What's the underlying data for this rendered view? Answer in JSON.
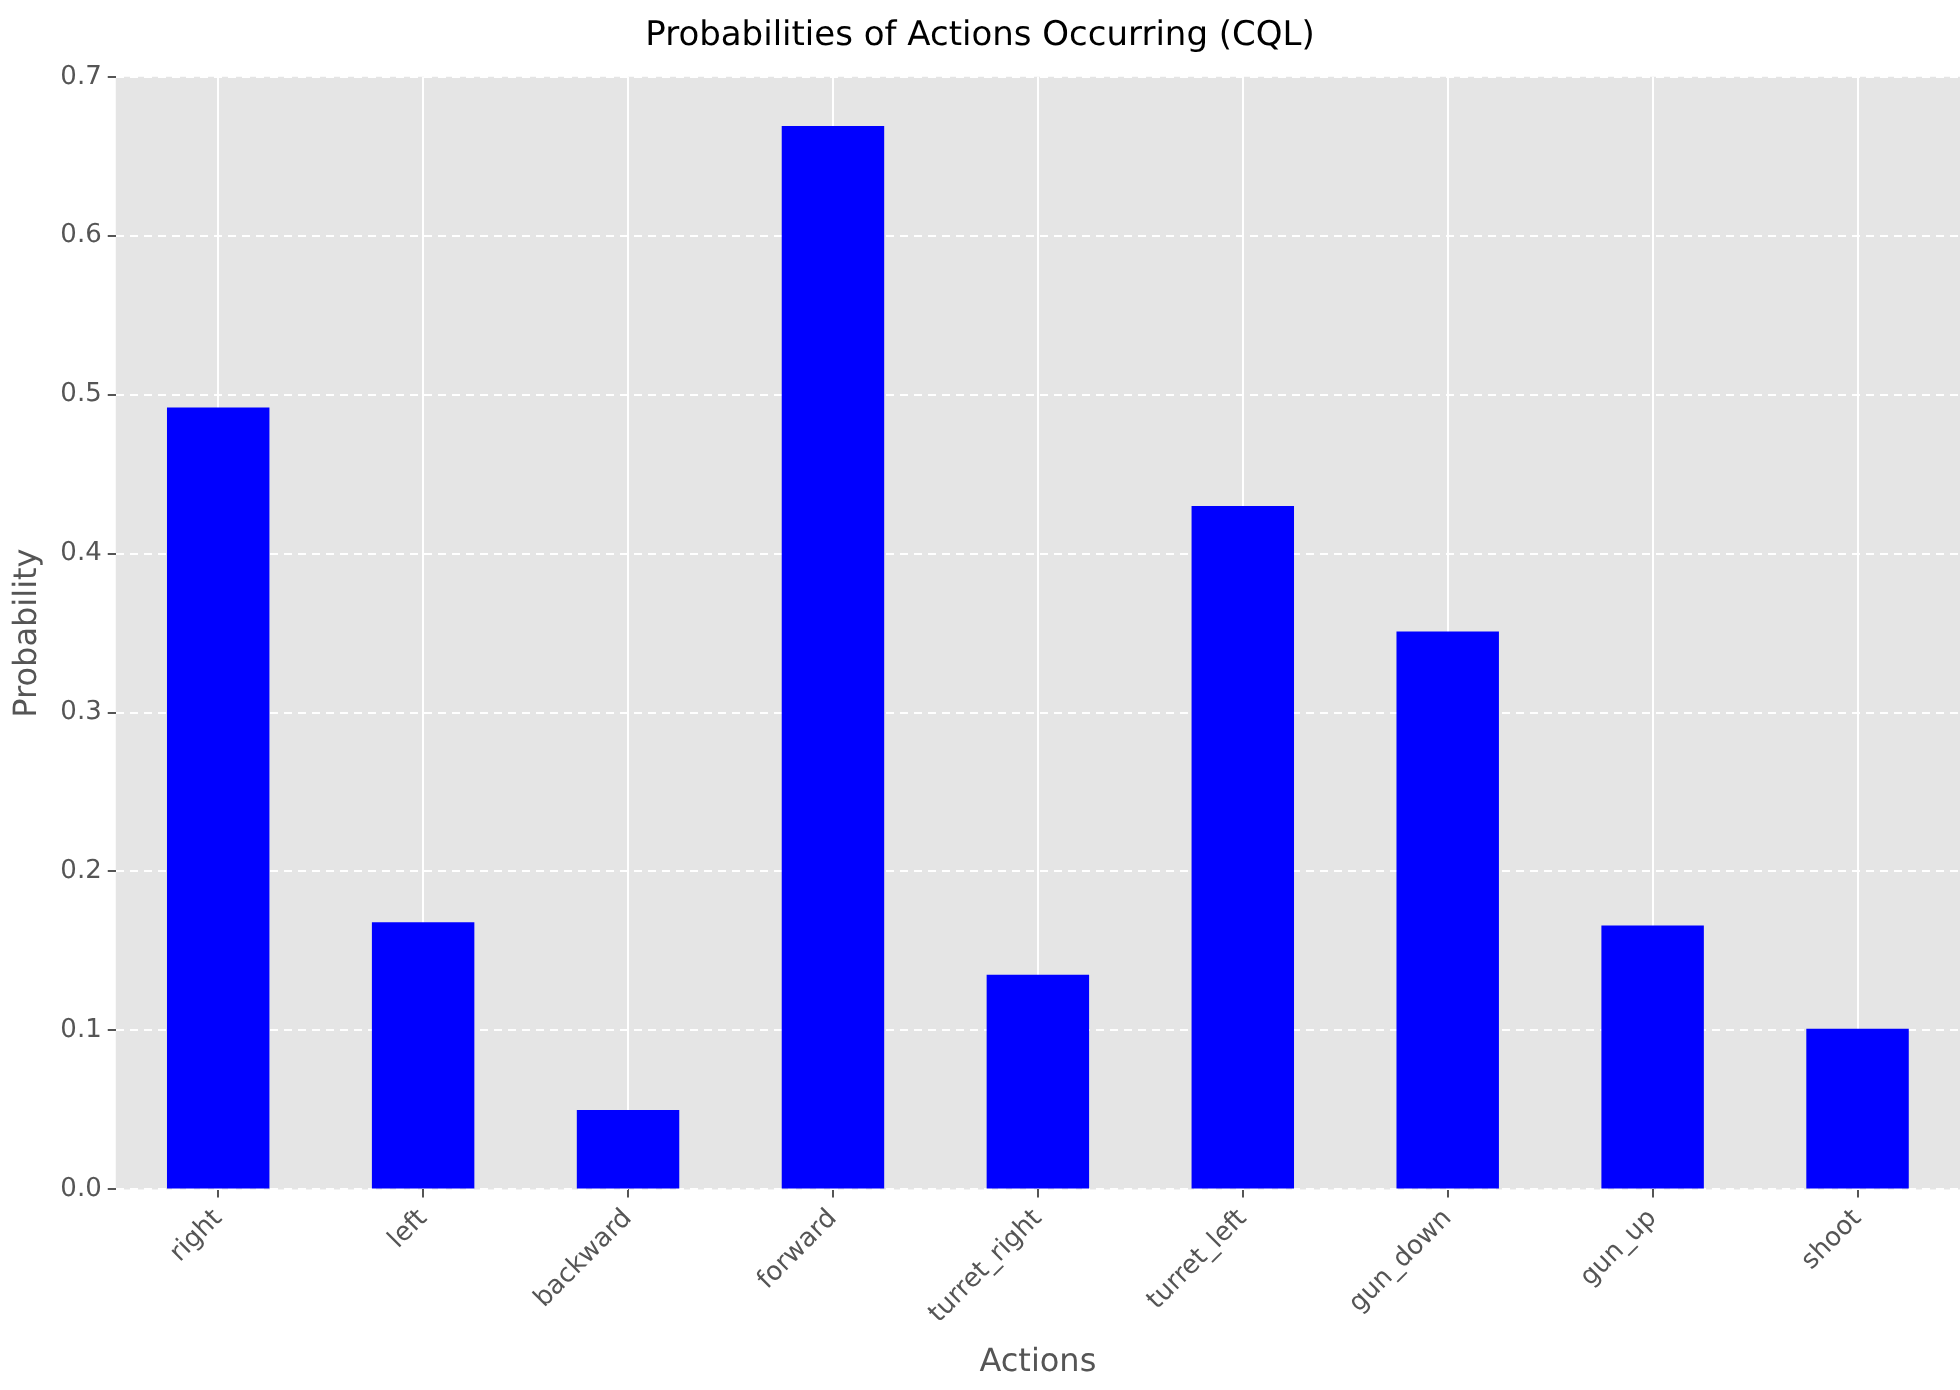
{
  "chart_data": {
    "type": "bar",
    "title": "Probabilities of Actions Occurring (CQL)",
    "xlabel": "Actions",
    "ylabel": "Probability",
    "categories": [
      "right",
      "left",
      "backward",
      "forward",
      "turret_right",
      "turret_left",
      "gun_down",
      "gun_up",
      "shoot"
    ],
    "values": [
      0.492,
      0.168,
      0.05,
      0.669,
      0.135,
      0.43,
      0.351,
      0.166,
      0.101
    ],
    "color": "#0000ff",
    "ylim": [
      0,
      0.7
    ],
    "yticks": [
      {
        "value": 0,
        "label": "0.0"
      },
      0.1,
      0.2,
      0.3,
      0.4,
      0.5,
      0.6,
      0.7
    ],
    "grid": true
  }
}
